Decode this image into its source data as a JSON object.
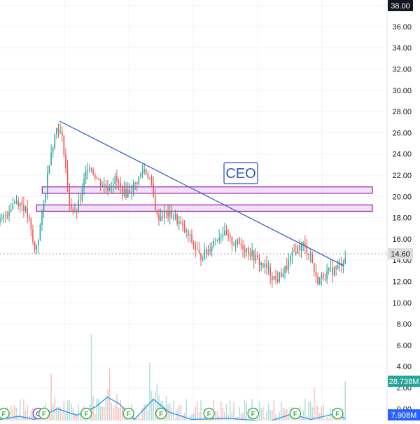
{
  "chart_data": {
    "type": "candlestick",
    "price_axis": {
      "ticks": [
        "38.00",
        "36.00",
        "34.00",
        "32.00",
        "30.00",
        "28.00",
        "26.00",
        "24.00",
        "22.00",
        "20.00",
        "18.00",
        "16.00",
        "14.00",
        "12.00",
        "10.00",
        "8.00",
        "6.00",
        "4.00",
        "2.00",
        "0.00"
      ],
      "range": [
        -1.1,
        38.5
      ],
      "grid": true
    },
    "price_badges": [
      {
        "label": "38.00",
        "value": 38.0,
        "color": "#131722",
        "text_color": "#ffffff"
      },
      {
        "label": "14.60",
        "value": 14.6,
        "color": "#dcdcdc",
        "text_color": "#131722"
      },
      {
        "label": "28.738M",
        "value": 2.6,
        "color": "#26a69a",
        "text_color": "#ffffff"
      },
      {
        "label": "7.908M",
        "value": -1.5,
        "color": "#2962ff",
        "text_color": "#ffffff"
      }
    ],
    "last_price_line": 14.6,
    "annotation": {
      "text": "CEO",
      "price": 22.2
    },
    "resistance_zones": [
      {
        "from": 20.3,
        "to": 20.9
      },
      {
        "from": 18.6,
        "to": 19.2
      }
    ],
    "trendline": {
      "from": {
        "bar": 0.155,
        "price": 27.1
      },
      "to": {
        "bar": 0.895,
        "price": 13.5
      }
    },
    "price_series": [
      {
        "bar": 0.0,
        "price": 17.5
      },
      {
        "bar": 0.02,
        "price": 18.6
      },
      {
        "bar": 0.04,
        "price": 19.7
      },
      {
        "bar": 0.06,
        "price": 19.2
      },
      {
        "bar": 0.075,
        "price": 17.8
      },
      {
        "bar": 0.09,
        "price": 14.8
      },
      {
        "bar": 0.1,
        "price": 16.2
      },
      {
        "bar": 0.115,
        "price": 19.4
      },
      {
        "bar": 0.13,
        "price": 23.8
      },
      {
        "bar": 0.15,
        "price": 26.8
      },
      {
        "bar": 0.165,
        "price": 25.0
      },
      {
        "bar": 0.18,
        "price": 19.5
      },
      {
        "bar": 0.195,
        "price": 18.2
      },
      {
        "bar": 0.21,
        "price": 19.8
      },
      {
        "bar": 0.23,
        "price": 23.2
      },
      {
        "bar": 0.255,
        "price": 21.5
      },
      {
        "bar": 0.28,
        "price": 20.8
      },
      {
        "bar": 0.3,
        "price": 21.6
      },
      {
        "bar": 0.325,
        "price": 20.2
      },
      {
        "bar": 0.35,
        "price": 21.0
      },
      {
        "bar": 0.375,
        "price": 22.6
      },
      {
        "bar": 0.39,
        "price": 21.8
      },
      {
        "bar": 0.41,
        "price": 18.0
      },
      {
        "bar": 0.43,
        "price": 18.4
      },
      {
        "bar": 0.455,
        "price": 18.1
      },
      {
        "bar": 0.48,
        "price": 16.8
      },
      {
        "bar": 0.5,
        "price": 15.8
      },
      {
        "bar": 0.52,
        "price": 14.3
      },
      {
        "bar": 0.54,
        "price": 14.8
      },
      {
        "bar": 0.56,
        "price": 16.0
      },
      {
        "bar": 0.58,
        "price": 16.6
      },
      {
        "bar": 0.6,
        "price": 15.8
      },
      {
        "bar": 0.62,
        "price": 15.6
      },
      {
        "bar": 0.645,
        "price": 15.0
      },
      {
        "bar": 0.67,
        "price": 14.0
      },
      {
        "bar": 0.695,
        "price": 13.2
      },
      {
        "bar": 0.72,
        "price": 12.1
      },
      {
        "bar": 0.745,
        "price": 13.2
      },
      {
        "bar": 0.77,
        "price": 15.0
      },
      {
        "bar": 0.79,
        "price": 15.4
      },
      {
        "bar": 0.81,
        "price": 14.5
      },
      {
        "bar": 0.825,
        "price": 12.0
      },
      {
        "bar": 0.845,
        "price": 12.6
      },
      {
        "bar": 0.87,
        "price": 13.1
      },
      {
        "bar": 0.885,
        "price": 13.4
      },
      {
        "bar": 0.9,
        "price": 14.4
      }
    ],
    "volume_ma_line": [
      {
        "bar": 0.0,
        "price": -1.0
      },
      {
        "bar": 0.05,
        "price": -0.7
      },
      {
        "bar": 0.09,
        "price": -1.0
      },
      {
        "bar": 0.15,
        "price": 0.0
      },
      {
        "bar": 0.2,
        "price": -0.6
      },
      {
        "bar": 0.25,
        "price": 0.2
      },
      {
        "bar": 0.28,
        "price": 1.1
      },
      {
        "bar": 0.31,
        "price": 0.5
      },
      {
        "bar": 0.35,
        "price": -1.0
      },
      {
        "bar": 0.4,
        "price": 0.9
      },
      {
        "bar": 0.44,
        "price": -0.3
      },
      {
        "bar": 0.5,
        "price": -1.0
      },
      {
        "bar": 0.6,
        "price": -0.9
      },
      {
        "bar": 0.7,
        "price": -1.2
      },
      {
        "bar": 0.76,
        "price": -0.5
      },
      {
        "bar": 0.81,
        "price": -1.0
      },
      {
        "bar": 0.87,
        "price": -0.5
      },
      {
        "bar": 0.9,
        "price": -0.9
      }
    ],
    "volume_spikes": [
      {
        "bar": 0.135,
        "price": 3.3
      },
      {
        "bar": 0.24,
        "price": 7.0
      },
      {
        "bar": 0.285,
        "price": 3.8
      },
      {
        "bar": 0.39,
        "price": 4.4
      },
      {
        "bar": 0.41,
        "price": 2.4
      },
      {
        "bar": 0.82,
        "price": 2.0
      },
      {
        "bar": 0.9,
        "price": 2.6
      }
    ],
    "event_markers": [
      {
        "label": "F",
        "bar": 0.01
      },
      {
        "label": "C",
        "bar": 0.1
      },
      {
        "label": "F",
        "bar": 0.115
      },
      {
        "label": "F",
        "bar": 0.225
      },
      {
        "label": "F",
        "bar": 0.335
      },
      {
        "label": "F",
        "bar": 0.42
      },
      {
        "label": "F",
        "bar": 0.545
      },
      {
        "label": "F",
        "bar": 0.66
      },
      {
        "label": "F",
        "bar": 0.77
      },
      {
        "label": "F",
        "bar": 0.88
      }
    ],
    "colors": {
      "up": "#26a69a",
      "down": "#ef5350",
      "trendline": "#2f55c6",
      "zone": "#9c27b0",
      "volume_ma": "#2196f3",
      "grid": "#f0f3fa",
      "axis_text": "#131722"
    }
  }
}
